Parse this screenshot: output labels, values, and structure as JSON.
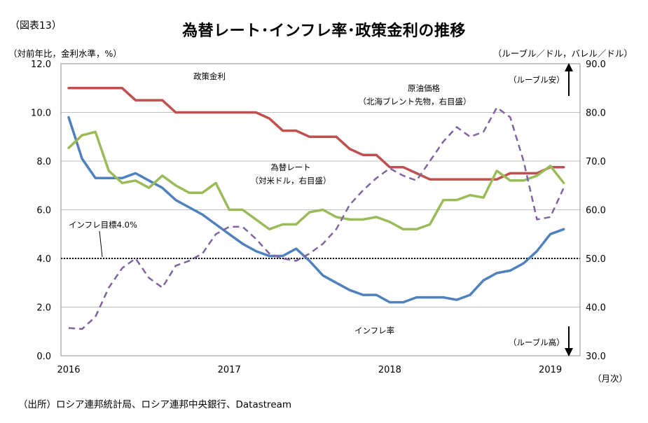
{
  "header": {
    "figure_label": "（図表13）",
    "title": "為替レート･インフレ率･政策金利の推移",
    "left_axis_label": "（対前年比，金利水準，%）",
    "right_axis_label": "（ルーブル／ドル，バレル／ドル）",
    "x_unit": "（月次）"
  },
  "footer": {
    "source": "（出所）ロシア連邦統計局、ロシア連邦中央銀行、Datastream"
  },
  "chart_data": {
    "type": "line",
    "x_ticks": [
      "2016",
      "2017",
      "2018",
      "2019"
    ],
    "x_start": "2016-01",
    "x_end": "2019-02",
    "yleft_ticks": [
      "0.0",
      "2.0",
      "4.0",
      "6.0",
      "8.0",
      "10.0",
      "12.0"
    ],
    "yleft_lim": [
      0,
      12
    ],
    "yright_ticks": [
      "30.0",
      "40.0",
      "50.0",
      "60.0",
      "70.0",
      "80.0",
      "90.0"
    ],
    "yright_lim": [
      30,
      90
    ],
    "grid": "horizontal",
    "series": [
      {
        "name": "政策金利",
        "axis": "left",
        "color": "#c0504d",
        "style": "solid",
        "values": [
          11.0,
          11.0,
          11.0,
          11.0,
          11.0,
          10.5,
          10.5,
          10.5,
          10.0,
          10.0,
          10.0,
          10.0,
          10.0,
          10.0,
          10.0,
          9.75,
          9.25,
          9.25,
          9.0,
          9.0,
          9.0,
          8.5,
          8.25,
          8.25,
          7.75,
          7.75,
          7.5,
          7.25,
          7.25,
          7.25,
          7.25,
          7.25,
          7.25,
          7.5,
          7.5,
          7.5,
          7.75,
          7.75
        ]
      },
      {
        "name": "インフレ率",
        "axis": "left",
        "color": "#4f81bd",
        "style": "solid",
        "values": [
          9.8,
          8.1,
          7.3,
          7.3,
          7.3,
          7.5,
          7.2,
          6.9,
          6.4,
          6.1,
          5.8,
          5.4,
          5.0,
          4.6,
          4.3,
          4.1,
          4.1,
          4.4,
          3.9,
          3.3,
          3.0,
          2.7,
          2.5,
          2.5,
          2.2,
          2.2,
          2.4,
          2.4,
          2.4,
          2.3,
          2.5,
          3.1,
          3.4,
          3.5,
          3.8,
          4.3,
          5.0,
          5.2
        ]
      },
      {
        "name": "為替レート（対米ドル，右目盛）",
        "axis": "right",
        "color": "#9bbb59",
        "style": "solid",
        "values": [
          72.7,
          75.3,
          76.0,
          68.0,
          65.5,
          66.0,
          64.5,
          67.0,
          65.0,
          63.5,
          63.5,
          65.5,
          60.0,
          60.0,
          58.0,
          56.0,
          57.0,
          57.0,
          59.5,
          60.0,
          58.5,
          58.0,
          58.0,
          58.5,
          57.5,
          56.0,
          56.0,
          57.0,
          62.0,
          62.0,
          63.0,
          62.5,
          68.0,
          66.0,
          66.0,
          67.0,
          69.0,
          65.5
        ]
      },
      {
        "name": "原油価格（北海ブレント先物，右目盛）",
        "axis": "right",
        "color": "#8064a2",
        "style": "dashed",
        "values": [
          35.7,
          35.5,
          38.0,
          44.0,
          48.0,
          50.0,
          46.0,
          44.0,
          48.5,
          49.5,
          51.0,
          55.0,
          56.5,
          56.5,
          54.0,
          51.0,
          50.0,
          49.5,
          51.0,
          53.0,
          56.0,
          61.0,
          64.0,
          66.5,
          68.5,
          67.0,
          66.0,
          70.0,
          74.0,
          77.0,
          75.0,
          76.0,
          81.0,
          79.0,
          70.0,
          58.0,
          58.5,
          64.5
        ]
      }
    ],
    "reference_line": {
      "label": "インフレ目標4.0%",
      "value": 4.0,
      "axis": "left"
    },
    "annotations": {
      "policy_rate": "政策金利",
      "inflation": "インフレ率",
      "fx_line1": "為替レート",
      "fx_line2": "（対米ドル，右目盛）",
      "oil_line1": "原油価格",
      "oil_line2": "（北海ブレント先物，右目盛）",
      "rub_weak": "（ルーブル安）",
      "rub_strong": "（ルーブル高）"
    }
  }
}
